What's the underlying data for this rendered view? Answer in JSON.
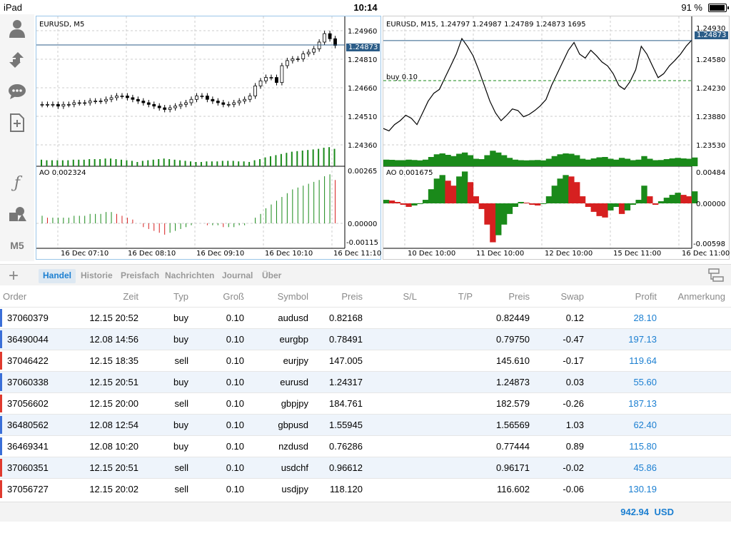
{
  "status": {
    "device": "iPad",
    "time": "10:14",
    "battery": "91 %"
  },
  "toolbar": {
    "items": [
      {
        "icon": "user-icon"
      },
      {
        "icon": "trade-arrows-icon"
      },
      {
        "icon": "chat-icon"
      },
      {
        "icon": "new-document-icon"
      },
      {
        "icon": "function-icon"
      },
      {
        "icon": "objects-icon"
      },
      {
        "label": "M5"
      }
    ]
  },
  "chart_data": [
    {
      "type": "candlestick",
      "title": "EURUSD, M5",
      "price_tag": "1.24873",
      "y_ticks": [
        "1.24960",
        "1.24810",
        "1.24660",
        "1.24510",
        "1.24360"
      ],
      "x_ticks": [
        "16 Dec 07:10",
        "16 Dec 08:10",
        "16 Dec 09:10",
        "16 Dec 10:10",
        "16 Dec 11:10"
      ],
      "indicator": {
        "label": "AO 0.002324",
        "y_ticks": [
          "0.00265",
          "0.00000",
          "-0.00115"
        ]
      },
      "closes": [
        1.2452,
        1.2452,
        1.2452,
        1.2451,
        1.2452,
        1.2452,
        1.2453,
        1.2453,
        1.2453,
        1.2454,
        1.2454,
        1.2454,
        1.2455,
        1.2456,
        1.2457,
        1.2457,
        1.2456,
        1.2455,
        1.2454,
        1.2453,
        1.2452,
        1.2451,
        1.245,
        1.2449,
        1.245,
        1.2451,
        1.2452,
        1.2453,
        1.2455,
        1.2457,
        1.2457,
        1.2455,
        1.2454,
        1.2453,
        1.2452,
        1.2452,
        1.2453,
        1.2454,
        1.2455,
        1.2457,
        1.2463,
        1.2466,
        1.2468,
        1.2468,
        1.2465,
        1.2475,
        1.2478,
        1.2479,
        1.2479,
        1.2482,
        1.2483,
        1.2485,
        1.2489,
        1.2494,
        1.2491,
        1.2487
      ],
      "ao": [
        0.0004,
        0.0003,
        0.0003,
        0.0003,
        0.0003,
        0.0003,
        0.0004,
        0.0004,
        0.0004,
        0.0005,
        0.0005,
        0.0005,
        0.0006,
        0.0006,
        0.0005,
        0.0004,
        0.0003,
        0.0002,
        0.0,
        -0.0002,
        -0.0003,
        -0.0004,
        -0.0005,
        -0.0006,
        -0.0005,
        -0.0004,
        -0.0003,
        -0.0002,
        -0.0001,
        0.0,
        0.0,
        -0.0001,
        -0.0001,
        -0.0001,
        -0.0002,
        -0.0002,
        -0.0002,
        -0.0001,
        -0.0001,
        0.0,
        0.0003,
        0.0005,
        0.0008,
        0.001,
        0.0012,
        0.0014,
        0.0016,
        0.0018,
        0.0019,
        0.002,
        0.0021,
        0.0022,
        0.0023,
        0.0025,
        0.0026,
        0.0023
      ]
    },
    {
      "type": "line",
      "title": "EURUSD, M15, 1.24797 1.24987 1.24789 1.24873 1695",
      "price_tag": "1.24873",
      "order_label": "buy 0.10",
      "y_ticks": [
        "1.24930",
        "1.24580",
        "1.24230",
        "1.23880",
        "1.23530"
      ],
      "x_ticks": [
        "10 Dec 10:00",
        "11 Dec 10:00",
        "12 Dec 10:00",
        "15 Dec 11:00",
        "16 Dec 11:00"
      ],
      "indicator": {
        "label": "AO 0.001675",
        "y_ticks": [
          "0.00484",
          "0.00000",
          "-0.00598"
        ]
      },
      "values": [
        1.2375,
        1.2372,
        1.238,
        1.2385,
        1.2392,
        1.2388,
        1.238,
        1.2395,
        1.241,
        1.242,
        1.2425,
        1.244,
        1.2455,
        1.247,
        1.249,
        1.248,
        1.2468,
        1.245,
        1.243,
        1.241,
        1.2395,
        1.2385,
        1.2392,
        1.24,
        1.2398,
        1.239,
        1.2393,
        1.2398,
        1.2404,
        1.2412,
        1.243,
        1.2445,
        1.246,
        1.2475,
        1.2485,
        1.247,
        1.2465,
        1.2475,
        1.2468,
        1.246,
        1.2455,
        1.2445,
        1.243,
        1.2425,
        1.2435,
        1.245,
        1.248,
        1.247,
        1.2455,
        1.244,
        1.2445,
        1.2455,
        1.2462,
        1.247,
        1.248,
        1.2488
      ],
      "ao": [
        0.0005,
        0.0004,
        0.0002,
        -0.0002,
        -0.0005,
        -0.0003,
        -0.0001,
        0.0005,
        0.002,
        0.0035,
        0.004,
        0.0032,
        0.0025,
        0.0038,
        0.0045,
        0.003,
        0.001,
        -0.0008,
        -0.003,
        -0.0055,
        -0.0045,
        -0.003,
        -0.0015,
        -0.0005,
        0.0002,
        0.0001,
        -0.0002,
        -0.0003,
        -0.0001,
        0.001,
        0.0025,
        0.0035,
        0.004,
        0.0038,
        0.003,
        0.001,
        -0.0005,
        -0.0012,
        -0.0018,
        -0.002,
        -0.001,
        -0.0005,
        -0.0015,
        -0.001,
        -0.0002,
        0.0005,
        0.0025,
        0.001,
        -0.0002,
        0.0003,
        0.0008,
        0.0012,
        0.0015,
        0.0012,
        0.001,
        0.0017
      ]
    }
  ],
  "tabs": [
    {
      "label": "Handel",
      "active": true
    },
    {
      "label": "Historie"
    },
    {
      "label": "Preisfach"
    },
    {
      "label": "Nachrichten"
    },
    {
      "label": "Journal"
    },
    {
      "label": "Über"
    }
  ],
  "table": {
    "headers": [
      "Order",
      "Zeit",
      "Typ",
      "Groß",
      "Symbol",
      "Preis",
      "S/L",
      "T/P",
      "Preis",
      "Swap",
      "Profit",
      "Anmerkung"
    ],
    "rows": [
      {
        "order": "37060379",
        "time": "12.15 20:52",
        "type": "buy",
        "size": "0.10",
        "symbol": "audusd",
        "price": "0.82168",
        "sl": "",
        "tp": "",
        "cur": "0.82449",
        "swap": "0.12",
        "profit": "28.10",
        "note": ""
      },
      {
        "order": "36490044",
        "time": "12.08 14:56",
        "type": "buy",
        "size": "0.10",
        "symbol": "eurgbp",
        "price": "0.78491",
        "sl": "",
        "tp": "",
        "cur": "0.79750",
        "swap": "-0.47",
        "profit": "197.13",
        "note": ""
      },
      {
        "order": "37046422",
        "time": "12.15 18:35",
        "type": "sell",
        "size": "0.10",
        "symbol": "eurjpy",
        "price": "147.005",
        "sl": "",
        "tp": "",
        "cur": "145.610",
        "swap": "-0.17",
        "profit": "119.64",
        "note": ""
      },
      {
        "order": "37060338",
        "time": "12.15 20:51",
        "type": "buy",
        "size": "0.10",
        "symbol": "eurusd",
        "price": "1.24317",
        "sl": "",
        "tp": "",
        "cur": "1.24873",
        "swap": "0.03",
        "profit": "55.60",
        "note": ""
      },
      {
        "order": "37056602",
        "time": "12.15 20:00",
        "type": "sell",
        "size": "0.10",
        "symbol": "gbpjpy",
        "price": "184.761",
        "sl": "",
        "tp": "",
        "cur": "182.579",
        "swap": "-0.26",
        "profit": "187.13",
        "note": ""
      },
      {
        "order": "36480562",
        "time": "12.08 12:54",
        "type": "buy",
        "size": "0.10",
        "symbol": "gbpusd",
        "price": "1.55945",
        "sl": "",
        "tp": "",
        "cur": "1.56569",
        "swap": "1.03",
        "profit": "62.40",
        "note": ""
      },
      {
        "order": "36469341",
        "time": "12.08 10:20",
        "type": "buy",
        "size": "0.10",
        "symbol": "nzdusd",
        "price": "0.76286",
        "sl": "",
        "tp": "",
        "cur": "0.77444",
        "swap": "0.89",
        "profit": "115.80",
        "note": ""
      },
      {
        "order": "37060351",
        "time": "12.15 20:51",
        "type": "sell",
        "size": "0.10",
        "symbol": "usdchf",
        "price": "0.96612",
        "sl": "",
        "tp": "",
        "cur": "0.96171",
        "swap": "-0.02",
        "profit": "45.86",
        "note": ""
      },
      {
        "order": "37056727",
        "time": "12.15 20:02",
        "type": "sell",
        "size": "0.10",
        "symbol": "usdjpy",
        "price": "118.120",
        "sl": "",
        "tp": "",
        "cur": "116.602",
        "swap": "-0.06",
        "profit": "130.19",
        "note": ""
      }
    ],
    "total": {
      "value": "942.94",
      "currency": "USD"
    }
  },
  "colors": {
    "buy": "#3a6fd8",
    "sell": "#e03a2e",
    "profit": "#1b7fd1",
    "bull": "#1a8a1a",
    "bear": "#d62020"
  }
}
